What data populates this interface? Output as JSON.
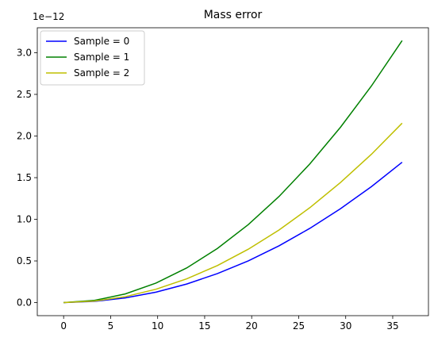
{
  "chart_data": {
    "type": "line",
    "title": "Mass error",
    "xlabel": "",
    "ylabel": "",
    "y_offset_label": "1e−12",
    "xlim": [
      -2.8,
      38.8
    ],
    "ylim": [
      -0.157,
      3.3
    ],
    "x_ticks": [
      0,
      5,
      10,
      15,
      20,
      25,
      30,
      35
    ],
    "x_tick_labels": [
      "0",
      "5",
      "10",
      "15",
      "20",
      "25",
      "30",
      "35"
    ],
    "y_ticks": [
      0.0,
      0.5,
      1.0,
      1.5,
      2.0,
      2.5,
      3.0
    ],
    "y_tick_labels": [
      "0.0",
      "0.5",
      "1.0",
      "1.5",
      "2.0",
      "2.5",
      "3.0"
    ],
    "grid": false,
    "legend_position": "upper-left",
    "series": [
      {
        "name": "Sample = 0",
        "color": "#0000ff",
        "x": [
          0,
          3.27,
          6.55,
          9.82,
          13.09,
          16.36,
          19.64,
          22.91,
          26.18,
          29.45,
          32.73,
          36.0
        ],
        "y": [
          0.0,
          0.014,
          0.056,
          0.125,
          0.223,
          0.348,
          0.501,
          0.682,
          0.891,
          1.128,
          1.392,
          1.685
        ]
      },
      {
        "name": "Sample = 1",
        "color": "#008000",
        "x": [
          0,
          3.27,
          6.55,
          9.82,
          13.09,
          16.36,
          19.64,
          22.91,
          26.18,
          29.45,
          32.73,
          36.0
        ],
        "y": [
          0.0,
          0.026,
          0.104,
          0.234,
          0.416,
          0.65,
          0.936,
          1.274,
          1.664,
          2.106,
          2.6,
          3.146
        ]
      },
      {
        "name": "Sample = 2",
        "color": "#bfbf00",
        "x": [
          0,
          3.27,
          6.55,
          9.82,
          13.09,
          16.36,
          19.64,
          22.91,
          26.18,
          29.45,
          32.73,
          36.0
        ],
        "y": [
          0.0,
          0.018,
          0.071,
          0.16,
          0.285,
          0.445,
          0.641,
          0.872,
          1.139,
          1.442,
          1.78,
          2.154
        ]
      }
    ]
  }
}
